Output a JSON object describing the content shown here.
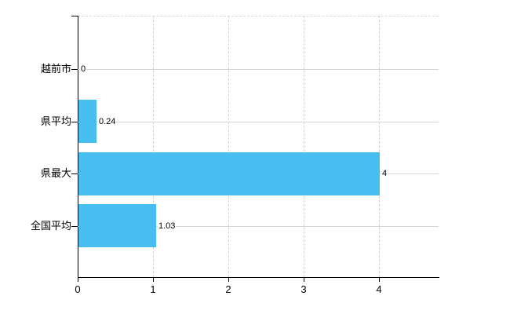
{
  "chart_data": {
    "type": "bar",
    "orientation": "horizontal",
    "title": "",
    "xlabel": "",
    "ylabel": "",
    "categories": [
      "越前市",
      "県平均",
      "県最大",
      "全国平均"
    ],
    "values": [
      0,
      0.24,
      4,
      1.03
    ],
    "value_labels": [
      "0",
      "0.24",
      "4",
      "1.03"
    ],
    "x_ticks": [
      0,
      1,
      2,
      3,
      4
    ],
    "x_tick_labels": [
      "0",
      "1",
      "2",
      "3",
      "4"
    ],
    "xlim": [
      0,
      4.79
    ],
    "grid": "on",
    "legend": "none",
    "colors": {
      "bar": "#48bef0",
      "h_grid": "#d2d9d2",
      "v_grid": "#d2d4d2",
      "axis": "#000000",
      "background": "#ffffff",
      "text": "#000000"
    }
  }
}
